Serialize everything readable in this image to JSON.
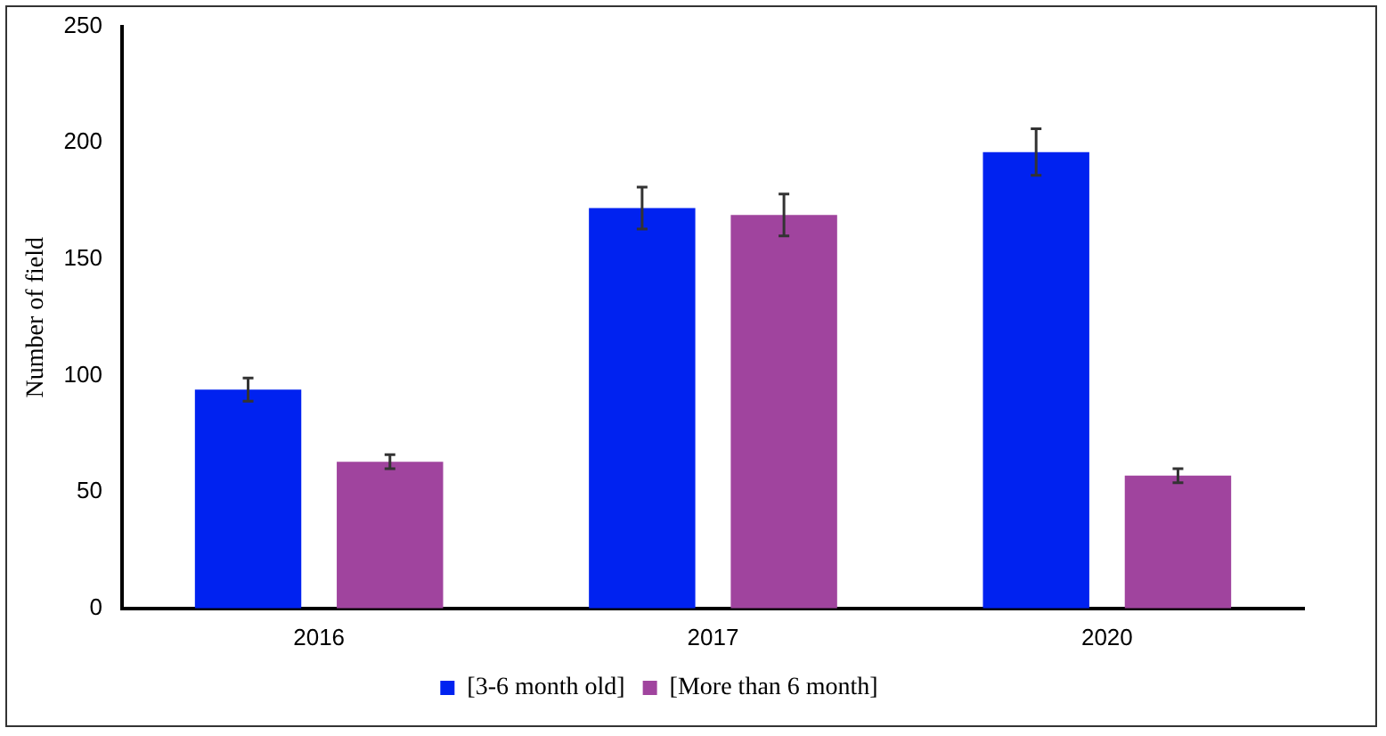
{
  "chart_data": {
    "type": "bar",
    "ylabel": "Number of field",
    "categories": [
      "2016",
      "2017",
      "2020"
    ],
    "series": [
      {
        "name": "[3-6 month old]",
        "color": "#0022f0",
        "values": [
          94,
          172,
          196
        ],
        "errors": [
          5,
          9,
          10
        ]
      },
      {
        "name": "[More than 6 month]",
        "color": "#a0449e",
        "values": [
          63,
          169,
          57
        ],
        "errors": [
          3,
          9,
          3
        ]
      }
    ],
    "ylim": [
      0,
      250
    ],
    "yticks": [
      0,
      50,
      100,
      150,
      200,
      250
    ],
    "grid": false,
    "legend": "bottom"
  }
}
